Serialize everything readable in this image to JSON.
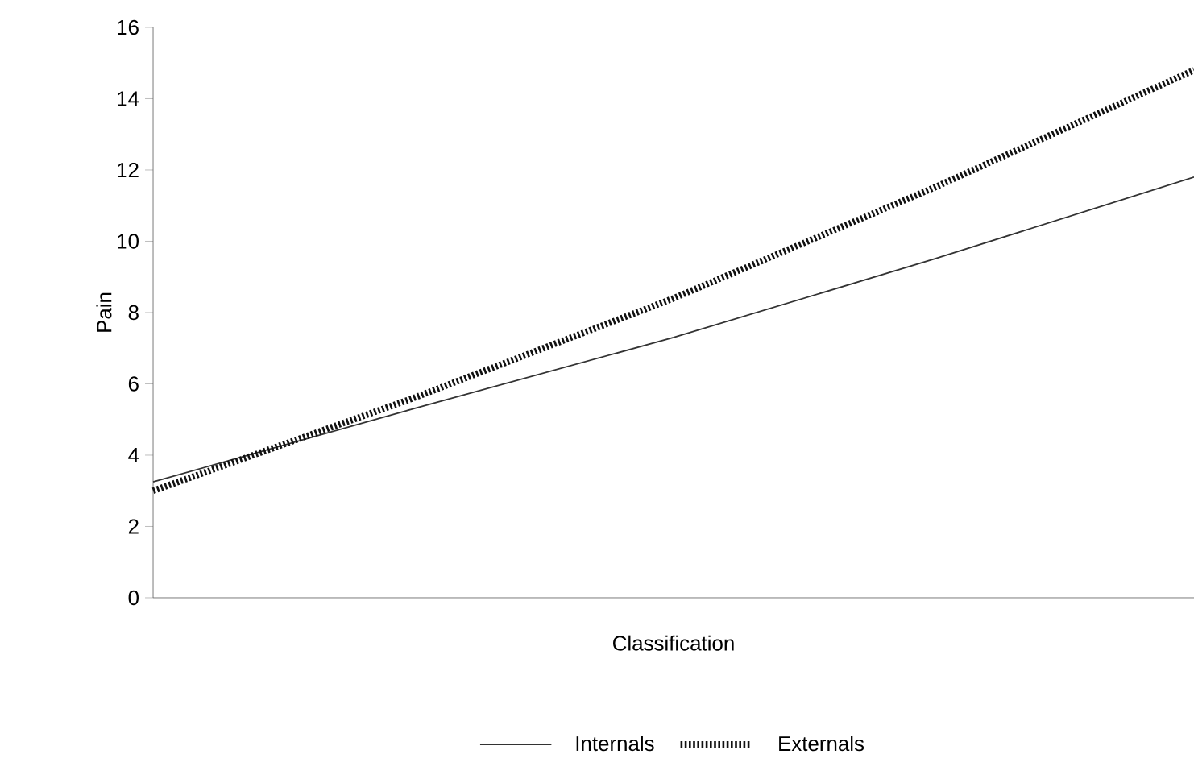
{
  "chart_data": {
    "type": "line",
    "xlabel": "Classification",
    "ylabel": "Pain",
    "categories": [
      null,
      null,
      null,
      null,
      null
    ],
    "series": [
      {
        "name": "Internals",
        "color": "#333333",
        "values": [
          3.25,
          5.3,
          7.3,
          9.5,
          11.8
        ],
        "line_style": "solid"
      },
      {
        "name": "Externals",
        "color": "#111111",
        "values": [
          3.0,
          5.6,
          8.4,
          11.5,
          14.8
        ],
        "line_style": "dotted"
      }
    ],
    "ylim": [
      0,
      16
    ],
    "yticks": [
      0,
      2,
      4,
      6,
      8,
      10,
      12,
      14,
      16
    ],
    "tick_labels": "y",
    "grid": false,
    "legend": "bottom",
    "marker": "none"
  }
}
